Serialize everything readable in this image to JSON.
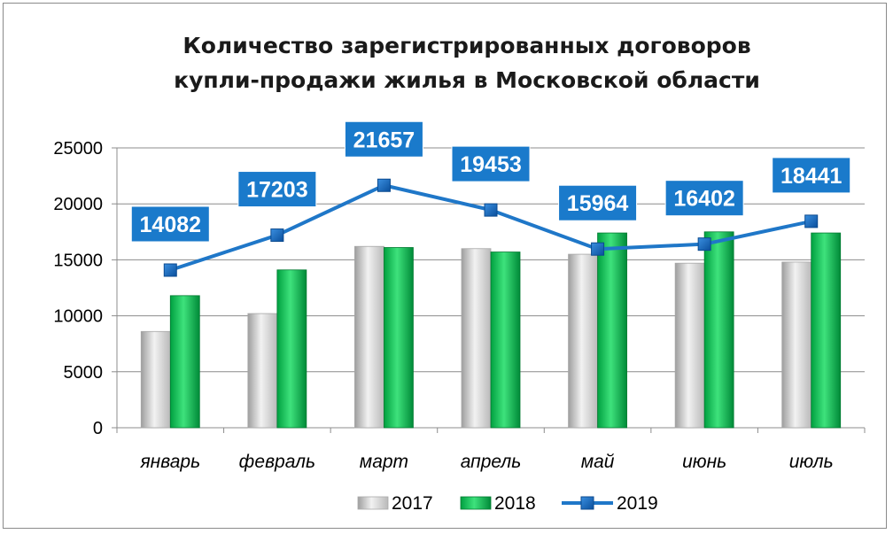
{
  "chart_data": {
    "type": "bar",
    "title": [
      "Количество зарегистрированных договоров",
      "купли-продажи жилья в Московской области"
    ],
    "categories": [
      "январь",
      "февраль",
      "март",
      "апрель",
      "май",
      "июнь",
      "июль"
    ],
    "series": [
      {
        "name": "2017",
        "kind": "bar",
        "color": "#d2d2d2",
        "values": [
          8600,
          10200,
          16200,
          16000,
          15500,
          14700,
          14800
        ]
      },
      {
        "name": "2018",
        "kind": "bar",
        "color": "#00b050",
        "values": [
          11800,
          14100,
          16100,
          15700,
          17400,
          17500,
          17400
        ]
      },
      {
        "name": "2019",
        "kind": "line",
        "color": "#1f77c8",
        "values": [
          14082,
          17203,
          21657,
          19453,
          15964,
          16402,
          18441
        ]
      }
    ],
    "data_labels": [
      "14082",
      "17203",
      "21657",
      "19453",
      "15964",
      "16402",
      "18441"
    ],
    "y_ticks": [
      "0",
      "5000",
      "10000",
      "15000",
      "20000",
      "25000"
    ],
    "ylim": [
      0,
      25000
    ],
    "xlabel": "",
    "ylabel": "",
    "grid": true,
    "legend": "bottom"
  }
}
